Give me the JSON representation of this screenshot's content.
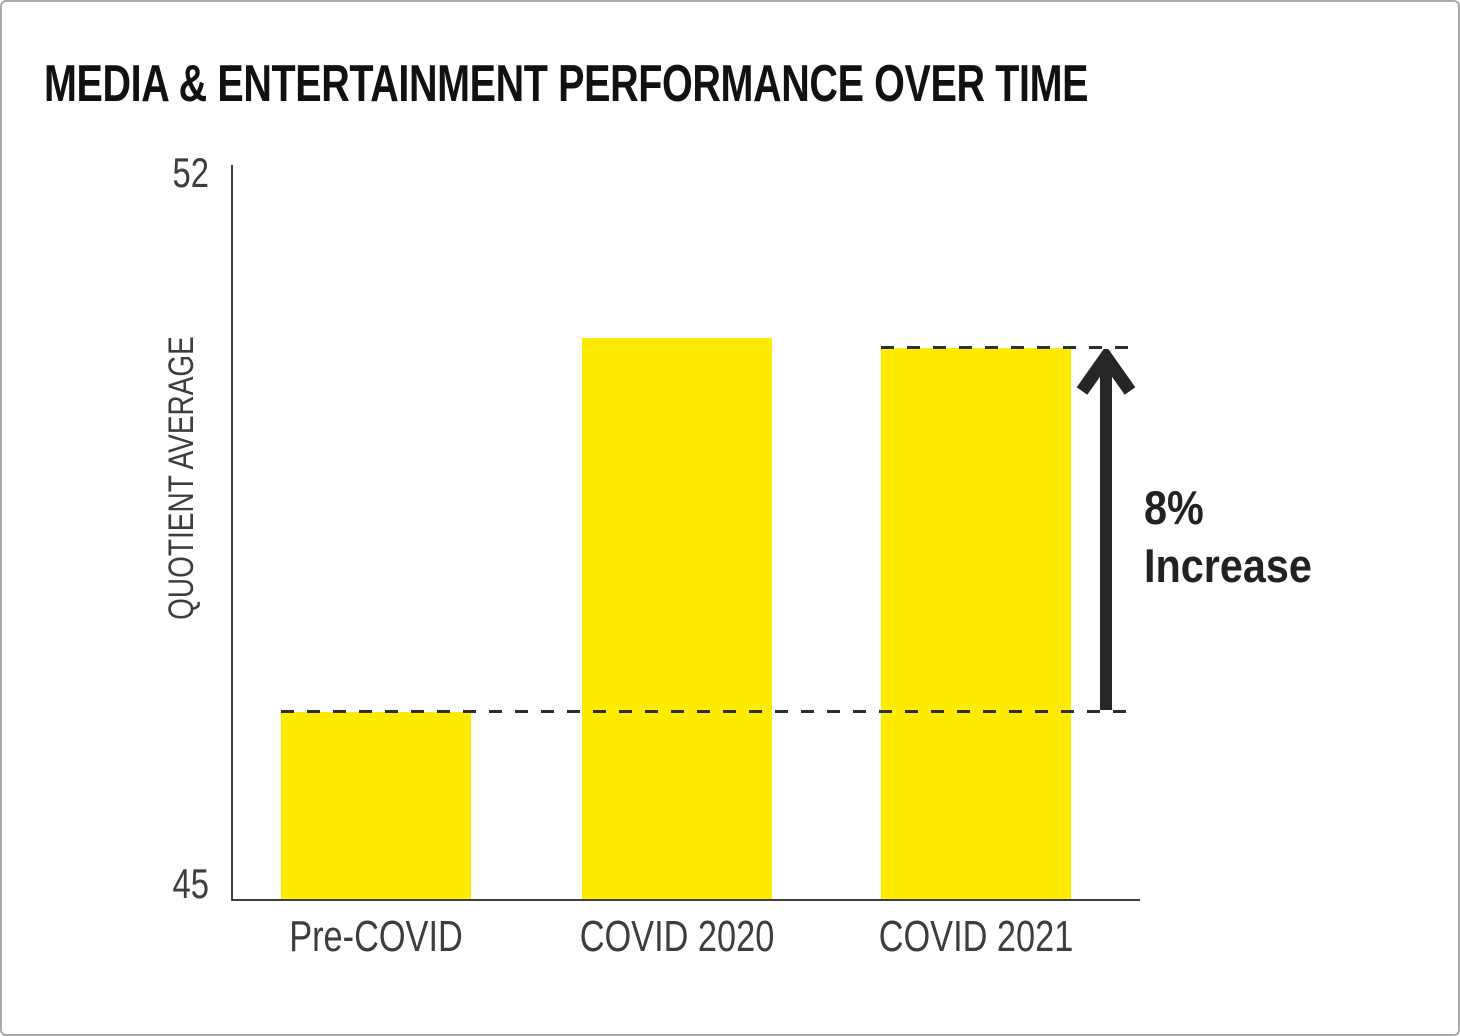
{
  "title": "MEDIA & ENTERTAINMENT PERFORMANCE OVER TIME",
  "chart_data": {
    "type": "bar",
    "title": "MEDIA & ENTERTAINMENT PERFORMANCE OVER TIME",
    "categories": [
      "Pre-COVID",
      "COVID 2020",
      "COVID 2021"
    ],
    "values": [
      46.8,
      50.4,
      50.3
    ],
    "xlabel": "",
    "ylabel": "QUOTIENT AVERAGE",
    "ylim": [
      45,
      52
    ],
    "ytick_labels": [
      "45",
      "52"
    ],
    "grid": false,
    "legend": "none",
    "bar_color": "#ffeb00",
    "reference_lines": [
      {
        "style": "dashed",
        "at_value": 46.8,
        "from_category_index": 0
      },
      {
        "style": "dashed",
        "at_value": 50.3,
        "from_category_index": 2
      }
    ],
    "annotation": {
      "line1": "8%",
      "line2": "Increase"
    }
  },
  "y_axis": {
    "title": "QUOTIENT AVERAGE",
    "top_label": "52",
    "bottom_label": "45"
  },
  "annotation": {
    "line1": "8%",
    "line2": "Increase"
  },
  "colors": {
    "bar": "#ffeb00",
    "axis": "#3d3d3d",
    "dash": "#2e2e2e",
    "arrow": "#262626",
    "title_text": "#111111",
    "border": "#a9a9a9"
  }
}
